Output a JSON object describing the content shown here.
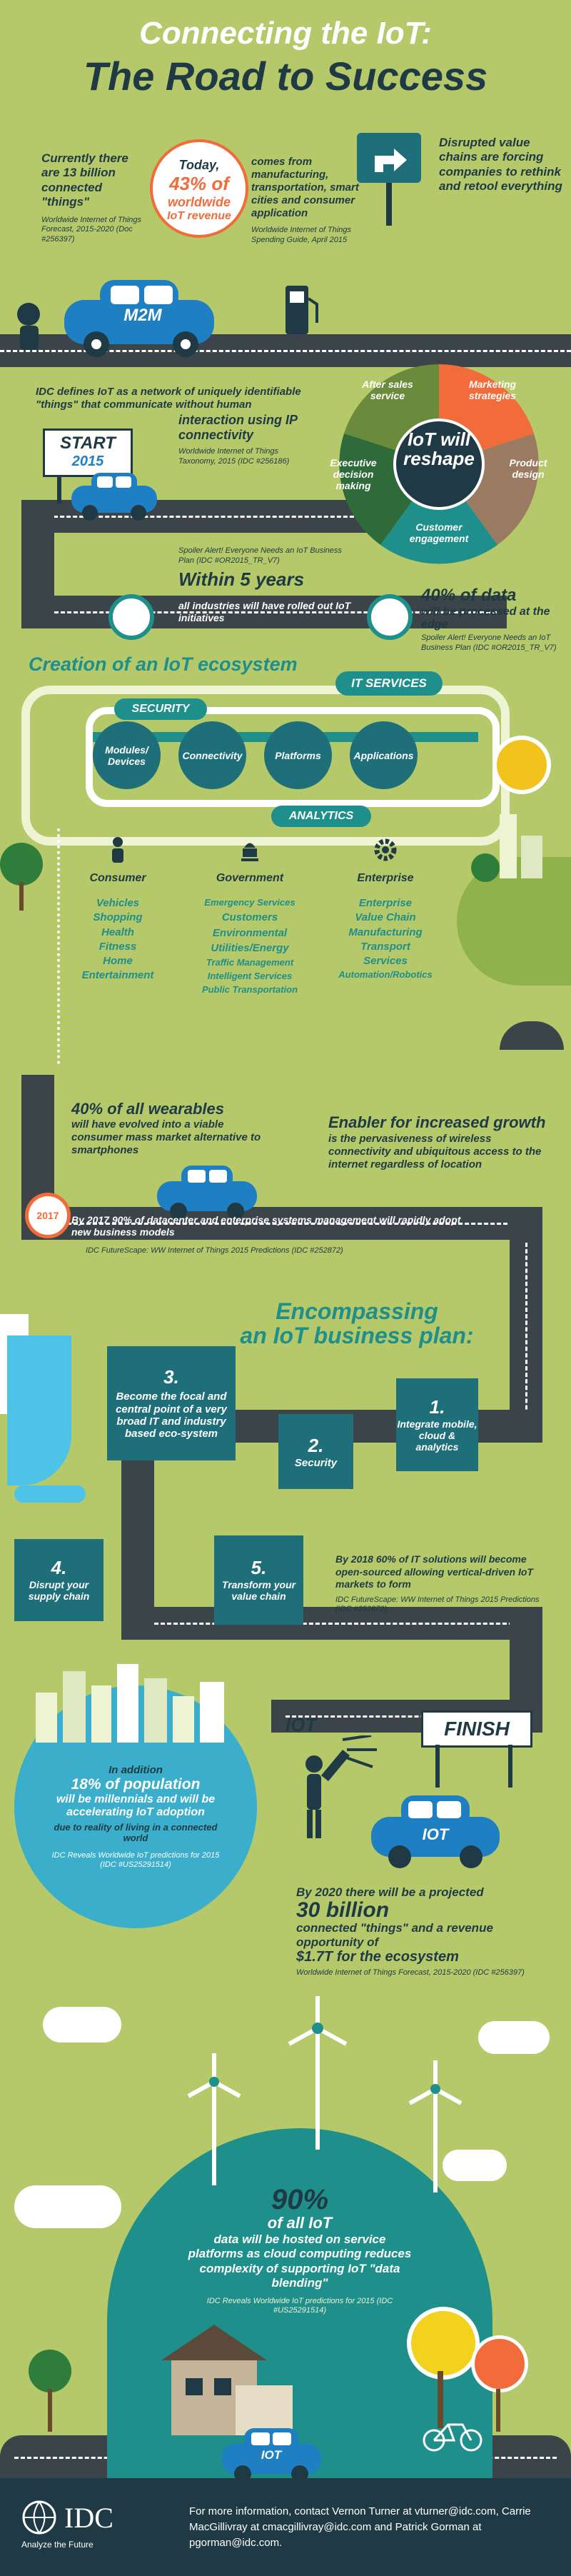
{
  "title": {
    "line1": "Connecting the IoT:",
    "line2": "The Road to Success"
  },
  "stat1": {
    "main": "Currently there are 13 billion connected \"things\"",
    "source": "Worldwide Internet of Things Forecast, 2015-2020 (Doc #256397)"
  },
  "badge_revenue": {
    "line1": "Today,",
    "line2": "43% of",
    "line3": "worldwide",
    "line4": "IoT revenue"
  },
  "stat_manufacturing": {
    "main": "comes from manufacturing, transportation, smart cities and consumer application",
    "source": "Worldwide Internet of Things Spending Guide, April 2015"
  },
  "stat_disrupted": {
    "main": "Disrupted value chains are forcing companies to rethink and retool everything"
  },
  "car_m2m_label": "M2M",
  "definition": {
    "lead": "IDC defines IoT as a network of uniquely identifiable \"things\" that communicate without human",
    "emph": "interaction using IP connectivity",
    "source": "Worldwide Internet of Things Taxonomy, 2015 (IDC #256186)"
  },
  "start_sign": {
    "word": "START",
    "year": "2015"
  },
  "wheel": {
    "center_line1": "IoT will",
    "center_line2": "reshape",
    "segments": [
      "After sales service",
      "Marketing strategies",
      "Product design",
      "Customer engagement",
      "Executive decision making"
    ]
  },
  "within5": {
    "source": "Spoiler Alert! Everyone Needs an IoT Business Plan (IDC #OR2015_TR_V7)",
    "head": "Within 5 years",
    "body": "all industries will have rolled out IoT initiatives"
  },
  "edge": {
    "head": "40% of data",
    "body": "will be processed at the edge",
    "source": "Spoiler Alert! Everyone Needs an IoT Business Plan (IDC #OR2015_TR_V7)"
  },
  "ecosystem": {
    "title": "Creation of an IoT ecosystem",
    "it_services": "IT SERVICES",
    "security": "SECURITY",
    "analytics": "ANALYTICS",
    "nodes": [
      "Modules/ Devices",
      "Connectivity",
      "Platforms",
      "Applications"
    ]
  },
  "sectors": [
    {
      "title": "Consumer",
      "icon": "person-icon",
      "items": [
        "Vehicles",
        "Shopping",
        "Health",
        "Fitness",
        "Home",
        "Entertainment"
      ]
    },
    {
      "title": "Government",
      "icon": "capitol-icon",
      "items": [
        "Emergency Services",
        "Customers",
        "Environmental",
        "Utilities/Energy",
        "Traffic Management",
        "Intelligent Services",
        "Public Transportation"
      ]
    },
    {
      "title": "Enterprise",
      "icon": "gear-icon",
      "items": [
        "Enterprise",
        "Value Chain",
        "Manufacturing",
        "Transport",
        "Services",
        "Automation/Robotics"
      ]
    }
  ],
  "wearables": {
    "head": "40% of all wearables",
    "body": "will have evolved into a viable consumer mass market alternative to smartphones"
  },
  "enabler": {
    "head": "Enabler for increased growth",
    "body": "is the pervasiveness of wireless connectivity and ubiquitous access to the internet regardless of location"
  },
  "badge_2017": "2017",
  "by2017": {
    "text": "By 2017 90% of datacenter and enterprise systems management will rapidly adopt new business models",
    "source": "IDC FutureScape: WW Internet of Things 2015 Predictions (IDC #252872)"
  },
  "plan": {
    "title1": "Encompassing",
    "title2": "an IoT business plan:",
    "steps": [
      {
        "num": "1.",
        "text": "Integrate mobile, cloud & analytics"
      },
      {
        "num": "2.",
        "text": "Security"
      },
      {
        "num": "3.",
        "text": "Become the focal and central point of a very broad IT and industry based eco-system"
      },
      {
        "num": "4.",
        "text": "Disrupt your supply chain"
      },
      {
        "num": "5.",
        "text": "Transform your value chain"
      }
    ]
  },
  "open_source": {
    "text": "By 2018 60% of IT solutions will become open-sourced allowing vertical-driven IoT markets to form",
    "source": "IDC FutureScape: WW Internet of Things 2015 Predictions (IDC #252872)"
  },
  "iot_sign": "IOT",
  "finish_sign": "FINISH",
  "car_iot_label": "IOT",
  "millennials": {
    "line1": "In addition",
    "line2": "18% of population",
    "line3": "will be millennials and will be accelerating IoT adoption",
    "line4": "due to reality of living in a connected world",
    "source": "IDC Reveals Worldwide IoT predictions for 2015 (IDC #US25291514)"
  },
  "by2020": {
    "text1": "By 2020 there will be a projected",
    "text2": "30 billion",
    "text3": "connected \"things\" and a revenue opportunity of",
    "text4": "$1.7T for the ecosystem",
    "source": "Worldwide Internet of Things Forecast, 2015-2020 (IDC #256397)"
  },
  "platforms": {
    "head": "90%",
    "line1": "of all IoT",
    "line2": "data will be hosted on service platforms as cloud computing reduces complexity of supporting IoT \"data blending\"",
    "source": "IDC Reveals Worldwide IoT predictions for 2015 (IDC #US25291514)"
  },
  "car_bottom_label": "IOT",
  "footer": {
    "logo": "IDC",
    "tagline": "Analyze the Future",
    "contact": "For more information, contact Vernon Turner at vturner@idc.com, Carrie MacGillivray at cmacgillivray@idc.com and Patrick Gorman at pgorman@idc.com."
  },
  "colors": {
    "background": "#b5c86a",
    "road": "#3b4448",
    "teal": "#1e8f8a",
    "navy": "#1f3a44",
    "orange": "#f26b3a",
    "car": "#1e7fc2",
    "footer": "#1f3a44"
  }
}
